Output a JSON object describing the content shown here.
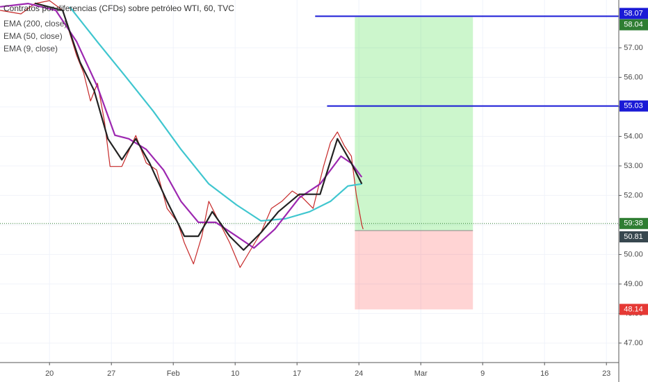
{
  "chart_data": {
    "type": "line",
    "title": "Contratos por diferencias (CFDs) sobre petróleo WTI, 60, TVC",
    "xlim": [
      -5.6,
      64.4
    ],
    "ylim": [
      46.34,
      58.62
    ],
    "xticks": [
      {
        "value": 0,
        "label": "20"
      },
      {
        "value": 7,
        "label": "27"
      },
      {
        "value": 14,
        "label": "Feb"
      },
      {
        "value": 21,
        "label": "10"
      },
      {
        "value": 28,
        "label": "17"
      },
      {
        "value": 35,
        "label": "24"
      },
      {
        "value": 42,
        "label": "Mar"
      },
      {
        "value": 49,
        "label": "9"
      },
      {
        "value": 56,
        "label": "16"
      },
      {
        "value": 63,
        "label": "23"
      }
    ],
    "yticks": [
      {
        "value": 47,
        "label": "47.00"
      },
      {
        "value": 48,
        "label": "48.00"
      },
      {
        "value": 49,
        "label": "49.00"
      },
      {
        "value": 50,
        "label": "50.00"
      },
      {
        "value": 51,
        "label": "51.00"
      },
      {
        "value": 52,
        "label": "52.00"
      },
      {
        "value": 53,
        "label": "53.00"
      },
      {
        "value": 54,
        "label": "54.00"
      },
      {
        "value": 55,
        "label": "55.00"
      },
      {
        "value": 56,
        "label": "56.00"
      },
      {
        "value": 57,
        "label": "57.00"
      }
    ],
    "grid": true,
    "series": [
      {
        "color": "#c62828",
        "x": [
          -5.59,
          -3.23,
          -1.65,
          0,
          1.49,
          3.07,
          3.86,
          4.64,
          5.43,
          6.22,
          6.85,
          8.18,
          9.76,
          10.94,
          12.12,
          13.3,
          14.48,
          15.26,
          16.29,
          17.23,
          18.02,
          19.2,
          20.38,
          21.56,
          22.74,
          23.92,
          25.1,
          26.28,
          27.46,
          28.64,
          29.82,
          31.0,
          31.79,
          32.57,
          33.36,
          34.15,
          34.7,
          35.33,
          35.48
        ],
        "values": [
          58.27,
          58.15,
          58.5,
          58.6,
          58.27,
          56.74,
          56.15,
          55.2,
          55.8,
          54.5,
          52.98,
          52.98,
          54.03,
          53.1,
          52.86,
          51.56,
          51.1,
          50.39,
          49.68,
          50.62,
          51.8,
          51.1,
          50.4,
          49.56,
          50.15,
          50.74,
          51.56,
          51.8,
          52.15,
          51.92,
          51.56,
          52.98,
          53.8,
          54.15,
          53.68,
          53.33,
          52.03,
          51.0,
          50.86
        ]
      },
      {
        "name": "EMA (200, close)",
        "color": "#3fc6cf",
        "x": [
          2.28,
          5.43,
          8.57,
          11.72,
          14.87,
          18.02,
          21.16,
          23.92,
          26.67,
          29.42,
          31.78,
          33.75,
          35.32
        ],
        "values": [
          58.39,
          57.2,
          56.04,
          54.86,
          53.56,
          52.39,
          51.68,
          51.14,
          51.21,
          51.45,
          51.8,
          52.32,
          52.39
        ]
      },
      {
        "name": "EMA (50, close)",
        "color": "#9c27b0",
        "x": [
          -5.59,
          -2.44,
          0.71,
          3.07,
          5.43,
          7.4,
          8.97,
          10.94,
          12.9,
          14.87,
          16.84,
          18.8,
          21.16,
          23.13,
          25.49,
          28.25,
          30.61,
          32.97,
          34.15,
          35.32
        ],
        "values": [
          58.39,
          58.5,
          58.27,
          57.21,
          55.68,
          54.04,
          53.92,
          53.56,
          52.86,
          51.8,
          51.09,
          51.09,
          50.62,
          50.22,
          50.86,
          51.92,
          52.39,
          53.33,
          53.09,
          52.62
        ]
      },
      {
        "name": "EMA (9, close)",
        "color": "#222222",
        "x": [
          -1.65,
          1.49,
          3.46,
          5.04,
          6.61,
          8.18,
          9.76,
          11.33,
          13.3,
          15.26,
          16.84,
          18.41,
          20.38,
          21.95,
          23.92,
          25.89,
          28.25,
          30.61,
          32.57,
          34.15,
          35.33
        ],
        "values": [
          58.51,
          58.27,
          56.51,
          55.56,
          53.92,
          53.21,
          53.92,
          53.09,
          51.8,
          50.62,
          50.62,
          51.45,
          50.62,
          50.15,
          50.74,
          51.45,
          52.04,
          52.04,
          53.92,
          53.09,
          52.39
        ]
      }
    ],
    "levels": [
      {
        "value": 58.07,
        "start": 30.05,
        "color": "#1a1ad6"
      },
      {
        "value": 55.03,
        "start": 31.4,
        "color": "#1a1ad6"
      }
    ],
    "position": {
      "entry": 50.81,
      "target": 58.04,
      "stop": 48.14,
      "start": 34.54,
      "end": 47.9,
      "profit_color": "#2e7d32",
      "loss_color": "#e53935",
      "entry_color": "#37474f"
    },
    "current": {
      "value": 51.05,
      "countdown": "59:38",
      "color": "#2e7d32"
    }
  }
}
